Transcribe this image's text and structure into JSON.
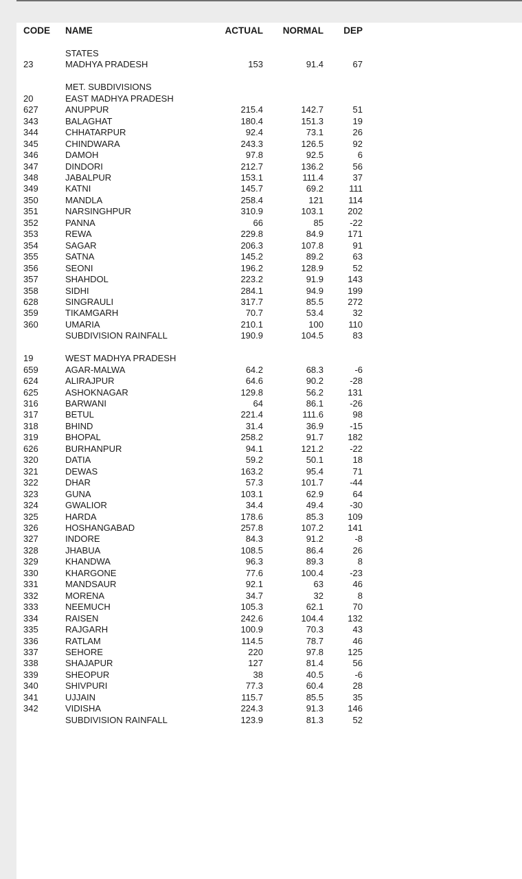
{
  "page": {
    "background_color": "#ececec",
    "panel_color": "#ffffff",
    "top_line_color": "#6e6e6e",
    "text_color": "#1a1a1a"
  },
  "table": {
    "columns": [
      "CODE",
      "NAME",
      "ACTUAL",
      "NORMAL",
      "DEP"
    ],
    "rows": [
      [
        "",
        "STATES",
        "",
        "",
        ""
      ],
      [
        "23",
        "MADHYA PRADESH",
        "153",
        "91.4",
        "67"
      ],
      [
        "",
        "",
        "",
        "",
        ""
      ],
      [
        "",
        "MET. SUBDIVISIONS",
        "",
        "",
        ""
      ],
      [
        "20",
        "EAST MADHYA PRADESH",
        "",
        "",
        ""
      ],
      [
        "627",
        "ANUPPUR",
        "215.4",
        "142.7",
        "51"
      ],
      [
        "343",
        "BALAGHAT",
        "180.4",
        "151.3",
        "19"
      ],
      [
        "344",
        "CHHATARPUR",
        "92.4",
        "73.1",
        "26"
      ],
      [
        "345",
        "CHINDWARA",
        "243.3",
        "126.5",
        "92"
      ],
      [
        "346",
        "DAMOH",
        "97.8",
        "92.5",
        "6"
      ],
      [
        "347",
        "DINDORI",
        "212.7",
        "136.2",
        "56"
      ],
      [
        "348",
        "JABALPUR",
        "153.1",
        "111.4",
        "37"
      ],
      [
        "349",
        "KATNI",
        "145.7",
        "69.2",
        "111"
      ],
      [
        "350",
        "MANDLA",
        "258.4",
        "121",
        "114"
      ],
      [
        "351",
        "NARSINGHPUR",
        "310.9",
        "103.1",
        "202"
      ],
      [
        "352",
        "PANNA",
        "66",
        "85",
        "-22"
      ],
      [
        "353",
        "REWA",
        "229.8",
        "84.9",
        "171"
      ],
      [
        "354",
        "SAGAR",
        "206.3",
        "107.8",
        "91"
      ],
      [
        "355",
        "SATNA",
        "145.2",
        "89.2",
        "63"
      ],
      [
        "356",
        "SEONI",
        "196.2",
        "128.9",
        "52"
      ],
      [
        "357",
        "SHAHDOL",
        "223.2",
        "91.9",
        "143"
      ],
      [
        "358",
        "SIDHI",
        "284.1",
        "94.9",
        "199"
      ],
      [
        "628",
        "SINGRAULI",
        "317.7",
        "85.5",
        "272"
      ],
      [
        "359",
        "TIKAMGARH",
        "70.7",
        "53.4",
        "32"
      ],
      [
        "360",
        "UMARIA",
        "210.1",
        "100",
        "110"
      ],
      [
        "",
        "SUBDIVISION RAINFALL",
        "190.9",
        "104.5",
        "83"
      ],
      [
        "",
        "",
        "",
        "",
        ""
      ],
      [
        "19",
        "WEST MADHYA PRADESH",
        "",
        "",
        ""
      ],
      [
        "659",
        "AGAR-MALWA",
        "64.2",
        "68.3",
        "-6"
      ],
      [
        "624",
        "ALIRAJPUR",
        "64.6",
        "90.2",
        "-28"
      ],
      [
        "625",
        "ASHOKNAGAR",
        "129.8",
        "56.2",
        "131"
      ],
      [
        "316",
        "BARWANI",
        "64",
        "86.1",
        "-26"
      ],
      [
        "317",
        "BETUL",
        "221.4",
        "111.6",
        "98"
      ],
      [
        "318",
        "BHIND",
        "31.4",
        "36.9",
        "-15"
      ],
      [
        "319",
        "BHOPAL",
        "258.2",
        "91.7",
        "182"
      ],
      [
        "626",
        "BURHANPUR",
        "94.1",
        "121.2",
        "-22"
      ],
      [
        "320",
        "DATIA",
        "59.2",
        "50.1",
        "18"
      ],
      [
        "321",
        "DEWAS",
        "163.2",
        "95.4",
        "71"
      ],
      [
        "322",
        "DHAR",
        "57.3",
        "101.7",
        "-44"
      ],
      [
        "323",
        "GUNA",
        "103.1",
        "62.9",
        "64"
      ],
      [
        "324",
        "GWALIOR",
        "34.4",
        "49.4",
        "-30"
      ],
      [
        "325",
        "HARDA",
        "178.6",
        "85.3",
        "109"
      ],
      [
        "326",
        "HOSHANGABAD",
        "257.8",
        "107.2",
        "141"
      ],
      [
        "327",
        "INDORE",
        "84.3",
        "91.2",
        "-8"
      ],
      [
        "328",
        "JHABUA",
        "108.5",
        "86.4",
        "26"
      ],
      [
        "329",
        "KHANDWA",
        "96.3",
        "89.3",
        "8"
      ],
      [
        "330",
        "KHARGONE",
        "77.6",
        "100.4",
        "-23"
      ],
      [
        "331",
        "MANDSAUR",
        "92.1",
        "63",
        "46"
      ],
      [
        "332",
        "MORENA",
        "34.7",
        "32",
        "8"
      ],
      [
        "333",
        "NEEMUCH",
        "105.3",
        "62.1",
        "70"
      ],
      [
        "334",
        "RAISEN",
        "242.6",
        "104.4",
        "132"
      ],
      [
        "335",
        "RAJGARH",
        "100.9",
        "70.3",
        "43"
      ],
      [
        "336",
        "RATLAM",
        "114.5",
        "78.7",
        "46"
      ],
      [
        "337",
        "SEHORE",
        "220",
        "97.8",
        "125"
      ],
      [
        "338",
        "SHAJAPUR",
        "127",
        "81.4",
        "56"
      ],
      [
        "339",
        "SHEOPUR",
        "38",
        "40.5",
        "-6"
      ],
      [
        "340",
        "SHIVPURI",
        "77.3",
        "60.4",
        "28"
      ],
      [
        "341",
        "UJJAIN",
        "115.7",
        "85.5",
        "35"
      ],
      [
        "342",
        "VIDISHA",
        "224.3",
        "91.3",
        "146"
      ],
      [
        "",
        "SUBDIVISION RAINFALL",
        "123.9",
        "81.3",
        "52"
      ]
    ]
  }
}
